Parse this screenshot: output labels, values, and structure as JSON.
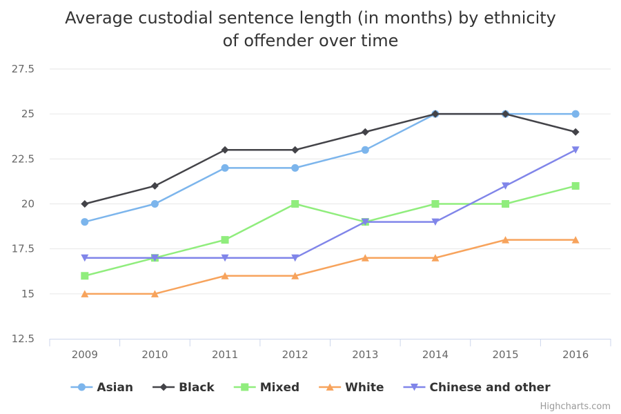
{
  "chart_data": {
    "type": "line",
    "title": "Average custodial sentence length (in months) by ethnicity of offender over time",
    "title_lines": [
      "Average custodial sentence length (in months) by ethnicity",
      "of offender over time"
    ],
    "categories": [
      "2009",
      "2010",
      "2011",
      "2012",
      "2013",
      "2014",
      "2015",
      "2016"
    ],
    "xlabel": "",
    "ylabel": "",
    "ylim": [
      12.5,
      27.5
    ],
    "yticks": [
      "12.5",
      "15",
      "17.5",
      "20",
      "22.5",
      "25",
      "27.5"
    ],
    "ytick_values": [
      12.5,
      15,
      17.5,
      20,
      22.5,
      25,
      27.5
    ],
    "grid": true,
    "legend_position": "bottom",
    "series": [
      {
        "name": "Asian",
        "color": "#7cb5ec",
        "marker": "circle",
        "values": [
          19,
          20,
          22,
          22,
          23,
          25,
          25,
          25
        ]
      },
      {
        "name": "Black",
        "color": "#434348",
        "marker": "diamond",
        "values": [
          20,
          21,
          23,
          23,
          24,
          25,
          25,
          24
        ]
      },
      {
        "name": "Mixed",
        "color": "#90ed7d",
        "marker": "square",
        "values": [
          16,
          17,
          18,
          20,
          19,
          20,
          20,
          21
        ]
      },
      {
        "name": "White",
        "color": "#f7a35c",
        "marker": "triangle",
        "values": [
          15,
          15,
          16,
          16,
          17,
          17,
          18,
          18
        ]
      },
      {
        "name": "Chinese and other",
        "color": "#8085e9",
        "marker": "triangle-down",
        "values": [
          17,
          17,
          17,
          17,
          19,
          19,
          21,
          23
        ]
      }
    ]
  },
  "credits": "Highcharts.com"
}
